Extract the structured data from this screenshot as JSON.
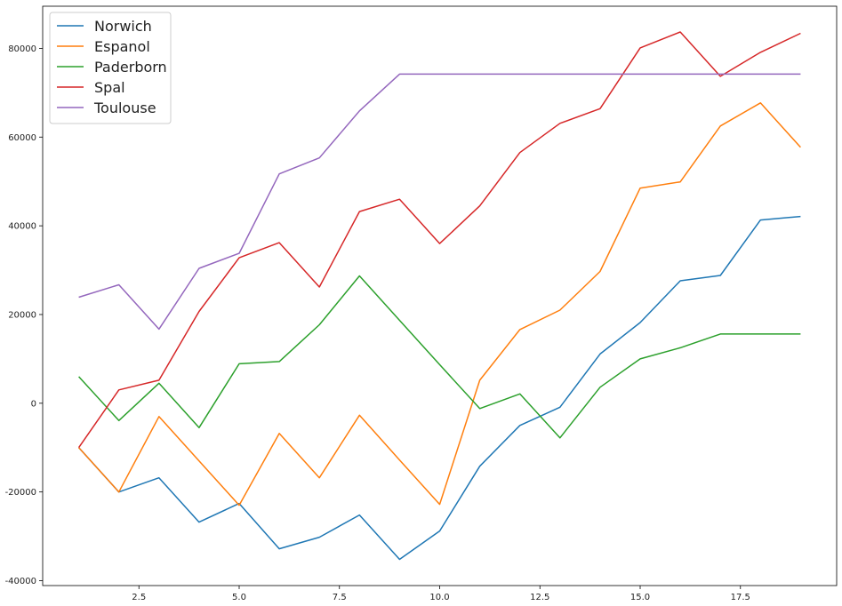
{
  "chart_data": {
    "type": "line",
    "title": "",
    "xlabel": "",
    "ylabel": "",
    "x": [
      1,
      2,
      3,
      4,
      5,
      6,
      7,
      8,
      9,
      10,
      11,
      12,
      13,
      14,
      15,
      16,
      17,
      18,
      19
    ],
    "xlim": [
      0.1,
      19.9
    ],
    "ylim": [
      -41100,
      89500
    ],
    "xticks": [
      2.5,
      5.0,
      7.5,
      10.0,
      12.5,
      15.0,
      17.5
    ],
    "xtick_labels": [
      "2.5",
      "5.0",
      "7.5",
      "10.0",
      "12.5",
      "15.0",
      "17.5"
    ],
    "yticks": [
      -40000,
      -20000,
      0,
      20000,
      40000,
      60000,
      80000
    ],
    "ytick_labels": [
      "-40000",
      "-20000",
      "0",
      "20000",
      "40000",
      "60000",
      "80000"
    ],
    "grid": false,
    "legend_position": "top-left",
    "series": [
      {
        "name": "Norwich",
        "color": "#1f77b4",
        "values": [
          -10000,
          -20000,
          -16800,
          -26800,
          -22600,
          -32800,
          -30200,
          -25200,
          -35200,
          -28800,
          -14200,
          -5000,
          -900,
          11100,
          18200,
          27600,
          28800,
          41300,
          42100
        ]
      },
      {
        "name": "Espanol",
        "color": "#ff7f0e",
        "values": [
          -10000,
          -20000,
          -3000,
          -13000,
          -23000,
          -6800,
          -16800,
          -2700,
          -12800,
          -22800,
          5200,
          16600,
          21000,
          29700,
          48500,
          49900,
          62500,
          67700,
          57700
        ]
      },
      {
        "name": "Paderborn",
        "color": "#2ca02c",
        "values": [
          6000,
          -3900,
          4500,
          -5500,
          8900,
          9400,
          17700,
          28700,
          18700,
          8700,
          -1200,
          2100,
          -7800,
          3600,
          10000,
          12500,
          15600,
          15600,
          15600
        ]
      },
      {
        "name": "Spal",
        "color": "#d62728",
        "values": [
          -10000,
          3000,
          5200,
          20700,
          32800,
          36200,
          26200,
          43200,
          46000,
          36000,
          44500,
          56500,
          63100,
          66400,
          80100,
          83700,
          73700,
          79100,
          83400
        ]
      },
      {
        "name": "Toulouse",
        "color": "#9467bd",
        "values": [
          23900,
          26700,
          16700,
          30400,
          33800,
          51700,
          55300,
          65900,
          74200,
          74200,
          74200,
          74200,
          74200,
          74200,
          74200,
          74200,
          74200,
          74200,
          74200
        ]
      }
    ]
  }
}
